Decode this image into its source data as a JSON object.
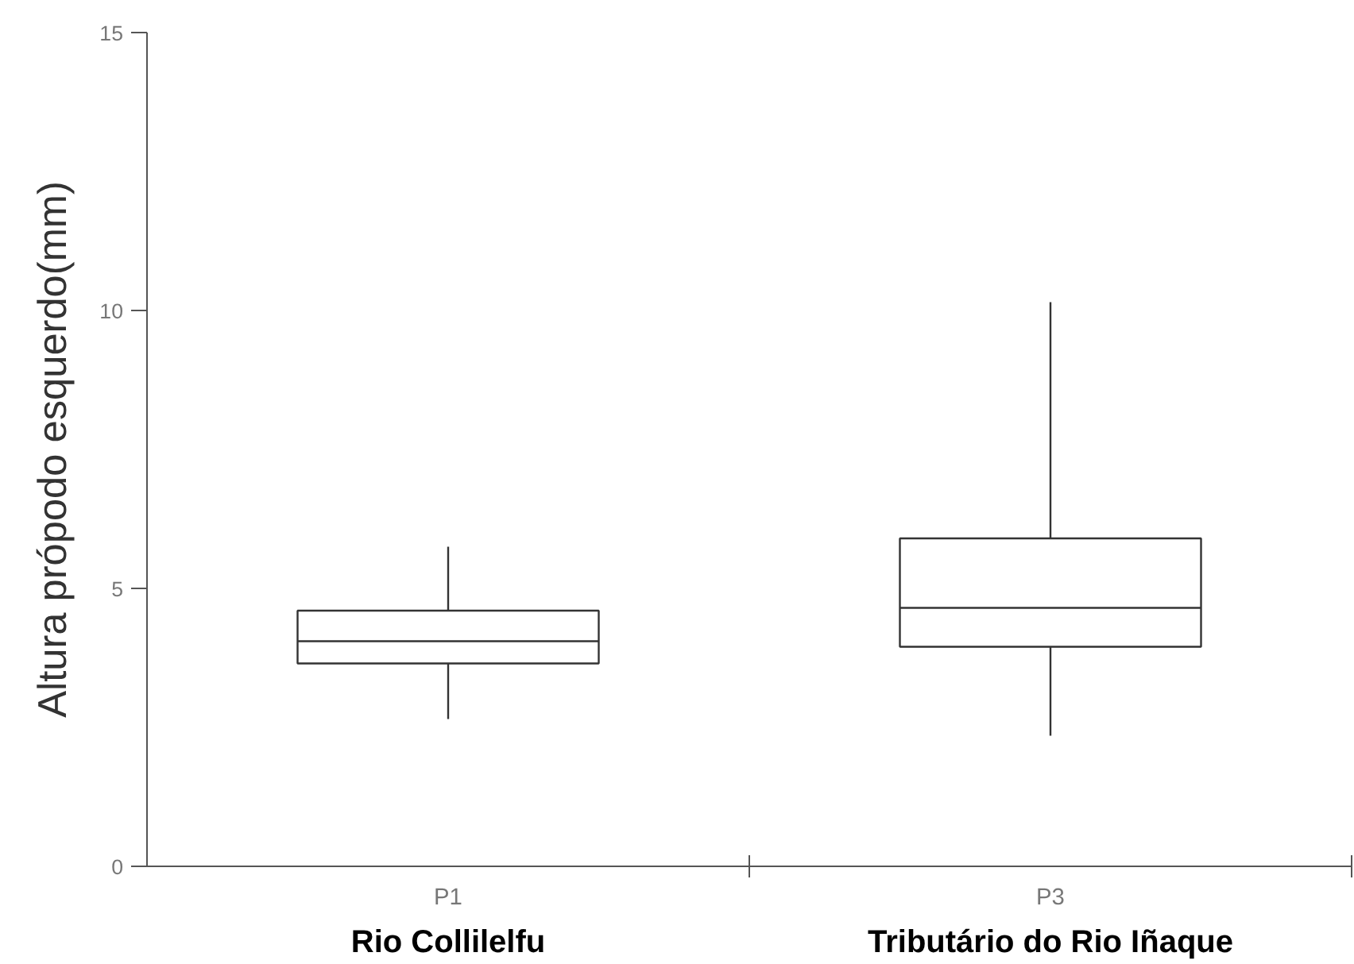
{
  "chart_data": {
    "type": "box",
    "ylabel": "Altura própodo esquerdo(mm)",
    "categories": [
      "P1",
      "P3"
    ],
    "boxes": [
      {
        "low": 2.65,
        "q1": 3.65,
        "median": 4.05,
        "q3": 4.6,
        "high": 5.75
      },
      {
        "low": 2.35,
        "q1": 3.95,
        "median": 4.65,
        "q3": 5.9,
        "high": 10.15
      }
    ],
    "ylim": [
      0,
      15
    ],
    "yticks": [
      0,
      5,
      10,
      15
    ],
    "grid": false,
    "annotations": [
      "Rio Collilelfu",
      "Tributário do Rio Iñaque"
    ]
  }
}
